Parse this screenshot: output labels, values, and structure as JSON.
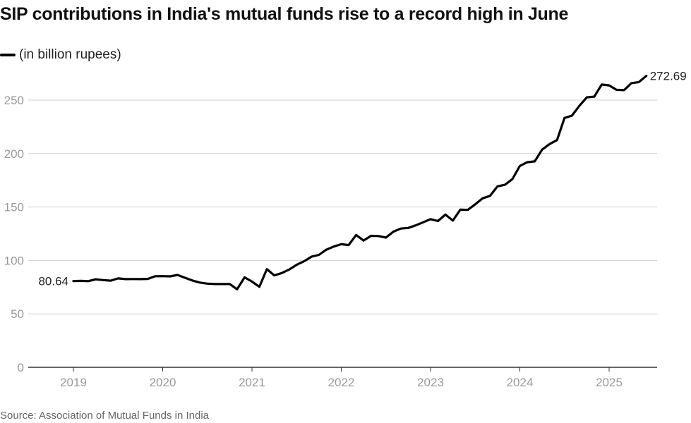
{
  "header": {
    "title": "SIP contributions in India's mutual funds rise to a record high in June"
  },
  "legend": {
    "label": "(in billion rupees)",
    "color": "#000000"
  },
  "footer": {
    "source": "Source: Association of Mutual Funds in India"
  },
  "chart_data": {
    "type": "line",
    "title": "SIP contributions in India's mutual funds rise to a record high in June",
    "ylabel": "(in billion rupees)",
    "xlabel": "",
    "ylim": [
      0,
      275
    ],
    "yticks": [
      0,
      50,
      100,
      150,
      200,
      250
    ],
    "xticks": [
      "2019",
      "2020",
      "2021",
      "2022",
      "2023",
      "2024",
      "2025"
    ],
    "grid": true,
    "legend_position": "top-left",
    "x_start": "2019-01",
    "x_end": "2025-06",
    "annotations": [
      {
        "x": "2019-01",
        "label": "80.64"
      },
      {
        "x": "2025-06",
        "label": "272.69"
      }
    ],
    "series": [
      {
        "name": "(in billion rupees)",
        "color": "#000000",
        "x": [
          "2019-01",
          "2019-02",
          "2019-03",
          "2019-04",
          "2019-05",
          "2019-06",
          "2019-07",
          "2019-08",
          "2019-09",
          "2019-10",
          "2019-11",
          "2019-12",
          "2020-01",
          "2020-02",
          "2020-03",
          "2020-04",
          "2020-05",
          "2020-06",
          "2020-07",
          "2020-08",
          "2020-09",
          "2020-10",
          "2020-11",
          "2020-12",
          "2021-01",
          "2021-02",
          "2021-03",
          "2021-04",
          "2021-05",
          "2021-06",
          "2021-07",
          "2021-08",
          "2021-09",
          "2021-10",
          "2021-11",
          "2021-12",
          "2022-01",
          "2022-02",
          "2022-03",
          "2022-04",
          "2022-05",
          "2022-06",
          "2022-07",
          "2022-08",
          "2022-09",
          "2022-10",
          "2022-11",
          "2022-12",
          "2023-01",
          "2023-02",
          "2023-03",
          "2023-04",
          "2023-05",
          "2023-06",
          "2023-07",
          "2023-08",
          "2023-09",
          "2023-10",
          "2023-11",
          "2023-12",
          "2024-01",
          "2024-02",
          "2024-03",
          "2024-04",
          "2024-05",
          "2024-06",
          "2024-07",
          "2024-08",
          "2024-09",
          "2024-10",
          "2024-11",
          "2024-12",
          "2025-01",
          "2025-02",
          "2025-03",
          "2025-04",
          "2025-05",
          "2025-06"
        ],
        "values": [
          80.64,
          80.9,
          80.6,
          82.3,
          81.6,
          81.1,
          83.2,
          82.5,
          82.6,
          82.5,
          82.7,
          85.2,
          85.3,
          85.1,
          86.4,
          83.8,
          81.2,
          79.3,
          78.3,
          77.9,
          77.9,
          78.0,
          73.0,
          84.2,
          80.2,
          75.3,
          91.8,
          86.0,
          88.2,
          91.5,
          95.9,
          99.2,
          103.5,
          105.2,
          110.1,
          113.0,
          115.2,
          114.4,
          123.8,
          118.6,
          123.0,
          122.8,
          121.4,
          126.9,
          129.8,
          130.4,
          132.8,
          135.7,
          138.6,
          136.9,
          142.9,
          137.3,
          147.5,
          147.3,
          152.5,
          158.1,
          160.4,
          169.3,
          170.8,
          176.1,
          188.4,
          191.9,
          192.7,
          203.7,
          208.9,
          212.6,
          233.3,
          235.5,
          244.6,
          252.6,
          253.2,
          264.6,
          263.8,
          259.6,
          259.3,
          265.9,
          266.9,
          272.69
        ]
      }
    ]
  }
}
